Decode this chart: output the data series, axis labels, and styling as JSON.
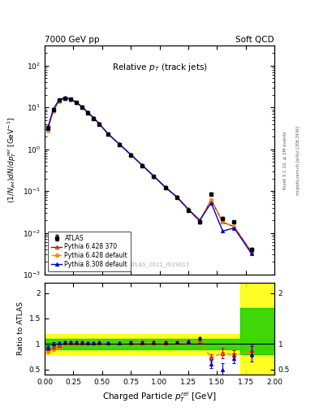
{
  "title_left": "7000 GeV pp",
  "title_right": "Soft QCD",
  "plot_title": "Relative $p_T$ (track jets)",
  "watermark": "ATLAS_2011_I919017",
  "right_label_top": "Rivet 3.1.10, ≥ 2M events",
  "right_label_bot": "mcplots.cern.ch [arXiv:1306.3436]",
  "xlabel": "Charged Particle $p_T^{rel}$ [GeV]",
  "ylabel": "$(1/N_{jet})dN/dp_T^{rel}$ [GeV$^{-1}$]",
  "ylabel_ratio": "Ratio to ATLAS",
  "xlim": [
    0.0,
    2.0
  ],
  "ylim_main": [
    0.001,
    300
  ],
  "ylim_ratio": [
    0.4,
    2.2
  ],
  "atlas_x": [
    0.025,
    0.075,
    0.125,
    0.175,
    0.225,
    0.275,
    0.325,
    0.375,
    0.425,
    0.475,
    0.55,
    0.65,
    0.75,
    0.85,
    0.95,
    1.05,
    1.15,
    1.25,
    1.35,
    1.45,
    1.55,
    1.65,
    1.8
  ],
  "atlas_y": [
    3.3,
    9.0,
    15.0,
    16.5,
    15.5,
    13.0,
    10.0,
    7.5,
    5.5,
    4.0,
    2.3,
    1.3,
    0.72,
    0.4,
    0.22,
    0.12,
    0.07,
    0.035,
    0.018,
    0.085,
    0.022,
    0.018,
    0.004
  ],
  "atlas_yerr": [
    0.3,
    0.5,
    0.7,
    0.8,
    0.7,
    0.6,
    0.5,
    0.35,
    0.25,
    0.18,
    0.1,
    0.06,
    0.035,
    0.02,
    0.011,
    0.006,
    0.004,
    0.002,
    0.001,
    0.006,
    0.002,
    0.001,
    0.0004
  ],
  "py6_370_x": [
    0.025,
    0.075,
    0.125,
    0.175,
    0.225,
    0.275,
    0.325,
    0.375,
    0.425,
    0.475,
    0.55,
    0.65,
    0.75,
    0.85,
    0.95,
    1.05,
    1.15,
    1.25,
    1.35,
    1.45,
    1.55,
    1.65,
    1.8
  ],
  "py6_370_y": [
    3.0,
    8.5,
    14.5,
    16.8,
    15.8,
    13.2,
    10.2,
    7.6,
    5.6,
    4.1,
    2.35,
    1.32,
    0.74,
    0.41,
    0.225,
    0.123,
    0.072,
    0.036,
    0.019,
    0.062,
    0.018,
    0.014,
    0.0035
  ],
  "py6_370_color": "#cc0000",
  "py6_def_x": [
    0.025,
    0.075,
    0.125,
    0.175,
    0.225,
    0.275,
    0.325,
    0.375,
    0.425,
    0.475,
    0.55,
    0.65,
    0.75,
    0.85,
    0.95,
    1.05,
    1.15,
    1.25,
    1.35,
    1.45,
    1.55,
    1.65,
    1.8
  ],
  "py6_def_y": [
    2.8,
    8.0,
    14.0,
    16.5,
    15.6,
    13.1,
    10.15,
    7.58,
    5.58,
    4.08,
    2.32,
    1.31,
    0.73,
    0.41,
    0.224,
    0.122,
    0.071,
    0.036,
    0.019,
    0.062,
    0.018,
    0.014,
    0.0034
  ],
  "py6_def_color": "#ff8800",
  "py8_def_x": [
    0.025,
    0.075,
    0.125,
    0.175,
    0.225,
    0.275,
    0.325,
    0.375,
    0.425,
    0.475,
    0.55,
    0.65,
    0.75,
    0.85,
    0.95,
    1.05,
    1.15,
    1.25,
    1.35,
    1.45,
    1.55,
    1.65,
    1.8
  ],
  "py8_def_y": [
    3.1,
    9.1,
    15.2,
    17.0,
    16.0,
    13.4,
    10.35,
    7.7,
    5.65,
    4.12,
    2.36,
    1.33,
    0.745,
    0.415,
    0.228,
    0.124,
    0.073,
    0.037,
    0.02,
    0.052,
    0.011,
    0.013,
    0.0032
  ],
  "py8_def_color": "#0000cc",
  "ratio_py6_370_y": [
    0.91,
    0.944,
    0.967,
    1.018,
    1.019,
    1.015,
    1.02,
    1.013,
    1.018,
    1.025,
    1.022,
    1.015,
    1.028,
    1.025,
    1.023,
    1.025,
    1.029,
    1.029,
    1.056,
    0.73,
    0.82,
    0.78,
    0.875
  ],
  "ratio_py6_def_y": [
    0.848,
    0.889,
    0.933,
    1.0,
    1.006,
    1.008,
    1.015,
    1.011,
    1.015,
    1.02,
    1.009,
    1.008,
    1.014,
    1.025,
    1.018,
    1.017,
    1.014,
    1.029,
    1.056,
    0.73,
    0.82,
    0.78,
    0.85
  ],
  "ratio_py8_def_y": [
    0.939,
    1.011,
    1.013,
    1.03,
    1.032,
    1.031,
    1.035,
    1.027,
    1.027,
    1.03,
    1.026,
    1.023,
    1.035,
    1.038,
    1.036,
    1.033,
    1.043,
    1.057,
    1.111,
    0.612,
    0.5,
    0.72,
    0.8
  ],
  "ratio_py8_yerr": [
    0.04,
    0.03,
    0.025,
    0.02,
    0.018,
    0.016,
    0.015,
    0.014,
    0.013,
    0.013,
    0.012,
    0.011,
    0.011,
    0.012,
    0.013,
    0.014,
    0.016,
    0.018,
    0.02,
    0.08,
    0.12,
    0.1,
    0.15
  ],
  "ratio_py6_370_yerr": [
    0.035,
    0.025,
    0.02,
    0.018,
    0.016,
    0.014,
    0.013,
    0.012,
    0.012,
    0.011,
    0.01,
    0.01,
    0.011,
    0.011,
    0.012,
    0.013,
    0.015,
    0.017,
    0.019,
    0.07,
    0.1,
    0.09,
    0.12
  ],
  "legend_entries": [
    "ATLAS",
    "Pythia 6.428 370",
    "Pythia 6.428 default",
    "Pythia 8.308 default"
  ]
}
